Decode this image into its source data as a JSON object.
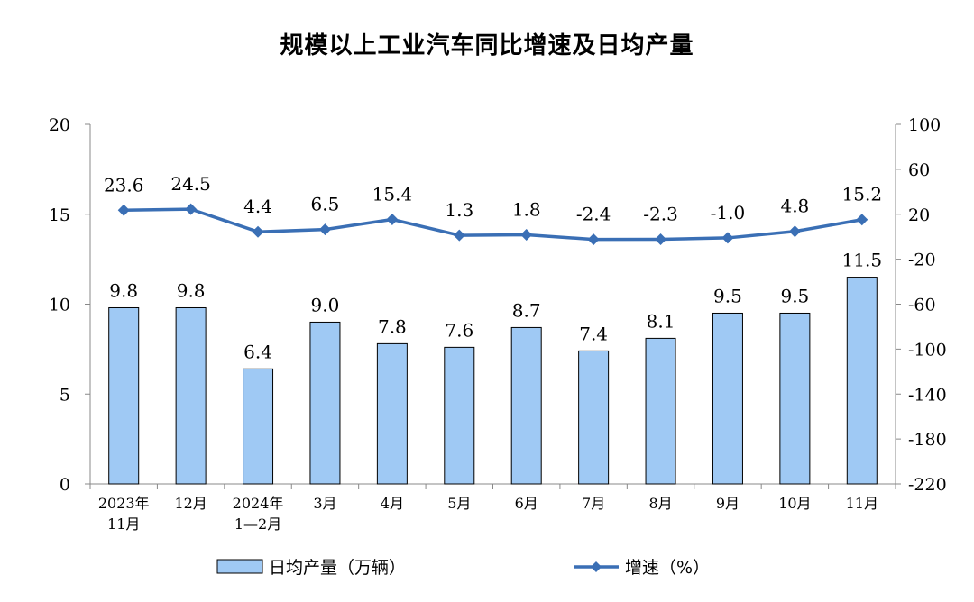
{
  "chart_data": {
    "type": "bar",
    "title": "规模以上工业汽车同比增速及日均产量",
    "categories": [
      "2023年\n11月",
      "12月",
      "2024年\n1—2月",
      "3月",
      "4月",
      "5月",
      "6月",
      "7月",
      "8月",
      "9月",
      "10月",
      "11月"
    ],
    "series": [
      {
        "name": "日均产量（万辆）",
        "type": "bar",
        "axis": "left",
        "color": "#9fc9f4",
        "values": [
          9.8,
          9.8,
          6.4,
          9.0,
          7.8,
          7.6,
          8.7,
          7.4,
          8.1,
          9.5,
          9.5,
          11.5
        ]
      },
      {
        "name": "增速（%）",
        "type": "line",
        "axis": "right",
        "color": "#3a6fb5",
        "marker": "diamond",
        "values": [
          23.6,
          24.5,
          4.4,
          6.5,
          15.4,
          1.3,
          1.8,
          -2.4,
          -2.3,
          -1.0,
          4.8,
          15.2
        ]
      }
    ],
    "y_left": {
      "min": 0,
      "max": 20,
      "ticks": [
        0,
        5,
        10,
        15,
        20
      ]
    },
    "y_right": {
      "min": -220,
      "max": 100,
      "ticks": [
        100,
        60,
        20,
        -20,
        -60,
        -100,
        -140,
        -180,
        -220
      ]
    },
    "grid": false,
    "legend_position": "bottom"
  }
}
